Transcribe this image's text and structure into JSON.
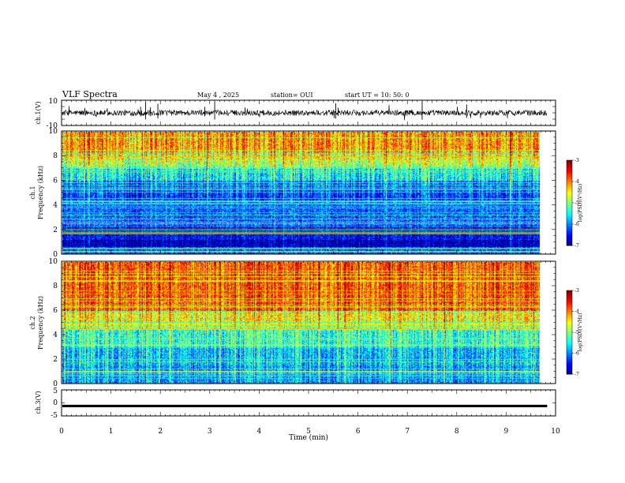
{
  "header": {
    "title": "VLF Spectra",
    "date": "May 4 , 2025",
    "station": "station= OUI",
    "start": "start  UT =   10: 50: 0"
  },
  "chart_data": [
    {
      "type": "line",
      "panel": "ch1-waveform",
      "ylabel": "ch.1(V)",
      "ylim": [
        -10,
        10
      ],
      "yticks": [
        "10",
        "-10"
      ],
      "xlim": [
        0,
        10
      ],
      "baseline": 0
    },
    {
      "type": "heatmap",
      "panel": "ch1-spectrogram",
      "ylabel": "ch.1\nFrequency  (kHz)",
      "ylabel_lines": [
        "ch.1",
        "Frequency  (kHz)"
      ],
      "ylim": [
        0,
        10
      ],
      "yticks": [
        "0",
        "2",
        "4",
        "6",
        "8",
        "10"
      ],
      "xlim": [
        0,
        10
      ],
      "data_end_min": 9.83,
      "colorbar": {
        "label": "log(PSD)(V²/Hz)",
        "ticks": [
          "-3",
          "-4",
          "-5",
          "-6",
          "-7"
        ],
        "range": [
          -7,
          -3
        ]
      }
    },
    {
      "type": "heatmap",
      "panel": "ch2-spectrogram",
      "ylabel": "ch.2\nFrequency  (kHz)",
      "ylabel_lines": [
        "ch.2",
        "Frequency  (kHz)"
      ],
      "ylim": [
        0,
        10
      ],
      "yticks": [
        "0",
        "2",
        "4",
        "6",
        "8",
        "10"
      ],
      "xlim": [
        0,
        10
      ],
      "data_end_min": 9.83,
      "colorbar": {
        "label": "log(PSD)(V²/Hz)",
        "ticks": [
          "-3",
          "-4",
          "-5",
          "-6",
          "-7"
        ],
        "range": [
          -7,
          -3
        ]
      }
    },
    {
      "type": "line",
      "panel": "ch3-waveform",
      "ylabel": "ch.3(V)",
      "ylim": [
        -5,
        5
      ],
      "yticks": [
        "5",
        "0",
        "-5"
      ],
      "xlim": [
        0,
        10
      ],
      "xlabel": "Time  (min)",
      "xticks": [
        "0",
        "1",
        "2",
        "3",
        "4",
        "5",
        "6",
        "7",
        "8",
        "9",
        "10"
      ],
      "constant_value": -1.2
    }
  ]
}
